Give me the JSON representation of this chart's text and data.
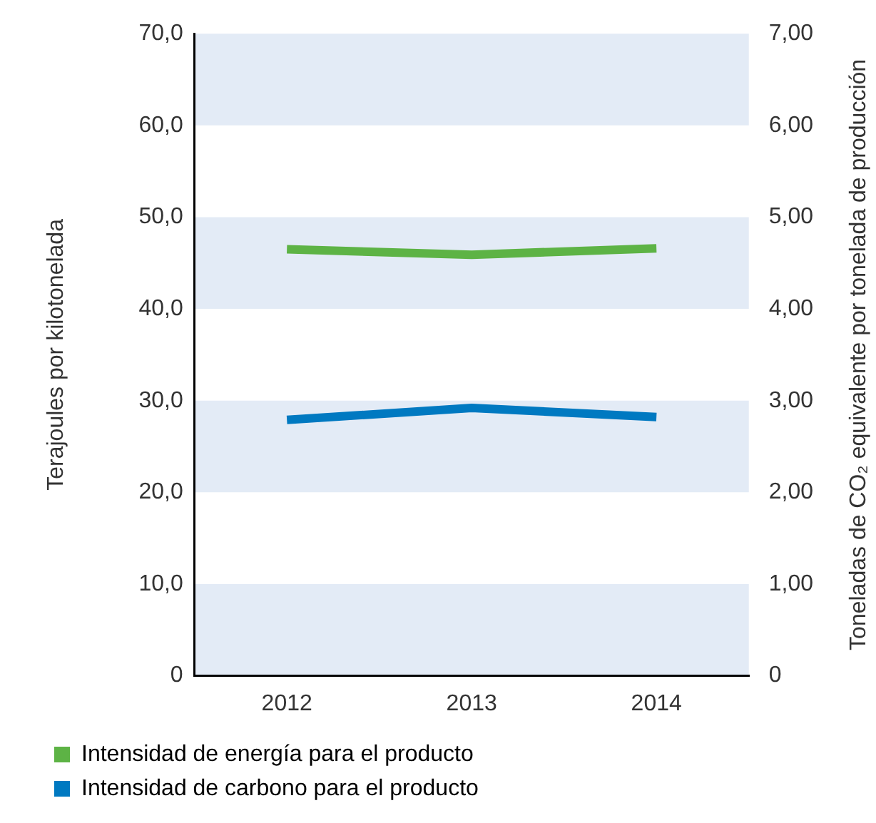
{
  "chart_data": {
    "type": "line",
    "categories": [
      "2012",
      "2013",
      "2014"
    ],
    "ylabel": "Terajoules por kilotonelada",
    "y2label": "Toneladas de CO₂ equivalente por tonelada de producción",
    "series": [
      {
        "name": "Intensidad de energía para el producto",
        "color": "#5db345",
        "values": [
          46.5,
          45.9,
          46.6
        ]
      },
      {
        "name": "Intensidad de carbono para el producto",
        "color": "#0079c1",
        "values": [
          2.79,
          2.92,
          2.82
        ],
        "axis": "y2"
      }
    ],
    "ylim": [
      0,
      70
    ],
    "yticks": [
      0,
      {
        "value": 10,
        "label": "10,0"
      },
      {
        "value": 20,
        "label": "20,0"
      },
      {
        "value": 30,
        "label": "30,0"
      },
      {
        "value": 40,
        "label": "40,0"
      },
      {
        "value": 50,
        "label": "50,0"
      },
      {
        "value": 60,
        "label": "60,0"
      },
      {
        "value": 70,
        "label": "70,0"
      }
    ],
    "y2lim": [
      0,
      7
    ],
    "y2ticks": [
      0,
      {
        "value": 1,
        "label": "1,00"
      },
      {
        "value": 2,
        "label": "2,00"
      },
      {
        "value": 3,
        "label": "3,00"
      },
      {
        "value": 4,
        "label": "4,00"
      },
      {
        "value": 5,
        "label": "5,00"
      },
      {
        "value": 6,
        "label": "6,00"
      },
      {
        "value": 7,
        "label": "7,00"
      }
    ],
    "bands": [
      {
        "axis": "y",
        "from": 0,
        "to": 10,
        "color": "#e3ebf6"
      },
      {
        "axis": "y",
        "from": 20,
        "to": 30,
        "color": "#e3ebf6"
      },
      {
        "axis": "y",
        "from": 40,
        "to": 50,
        "color": "#e3ebf6"
      },
      {
        "axis": "y",
        "from": 60,
        "to": 70,
        "color": "#e3ebf6"
      }
    ],
    "legend": "bottom left",
    "marker": "none",
    "line_style": "solid"
  }
}
